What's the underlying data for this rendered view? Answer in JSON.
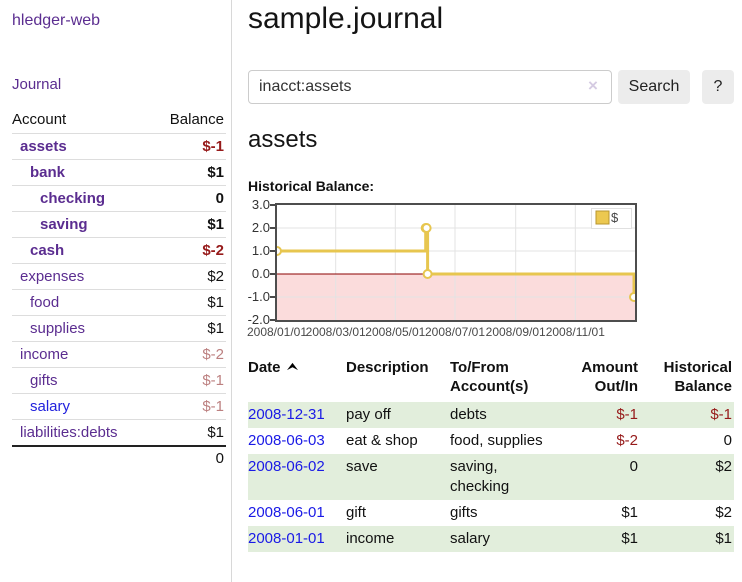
{
  "app": {
    "brand": "hledger-web",
    "nav": {
      "journal": "Journal"
    }
  },
  "colors": {
    "link_purple": "#5b2d90",
    "link_blue": "#2222dd",
    "date_link_blue": "#1a1ae6",
    "negative_red": "#961a1a",
    "muted_rose": "#bc8080",
    "row_stripe_green": "#e2eedc",
    "chart_line_gold": "#e7c64f",
    "chart_negative_fill": "#fbdcdc",
    "chart_zero_line": "#8b0000"
  },
  "sidebar": {
    "columns": {
      "account": "Account",
      "balance": "Balance"
    },
    "accounts": [
      {
        "name": "assets",
        "balance": "$-1",
        "level": 1,
        "strong": true,
        "link_style": "visited",
        "balance_style": "negative"
      },
      {
        "name": "bank",
        "balance": "$1",
        "level": 2,
        "strong": true,
        "link_style": "visited",
        "balance_style": "normal"
      },
      {
        "name": "checking",
        "balance": "0",
        "level": 3,
        "strong": true,
        "link_style": "visited",
        "balance_style": "normal"
      },
      {
        "name": "saving",
        "balance": "$1",
        "level": 3,
        "strong": true,
        "link_style": "visited",
        "balance_style": "normal"
      },
      {
        "name": "cash",
        "balance": "$-2",
        "level": 2,
        "strong": true,
        "link_style": "visited",
        "balance_style": "negative"
      },
      {
        "name": "expenses",
        "balance": "$2",
        "level": 1,
        "strong": false,
        "link_style": "visited",
        "balance_style": "normal"
      },
      {
        "name": "food",
        "balance": "$1",
        "level": 2,
        "strong": false,
        "link_style": "visited",
        "balance_style": "normal"
      },
      {
        "name": "supplies",
        "balance": "$1",
        "level": 2,
        "strong": false,
        "link_style": "visited",
        "balance_style": "normal"
      },
      {
        "name": "income",
        "balance": "$-2",
        "level": 1,
        "strong": false,
        "link_style": "visited",
        "balance_style": "muted"
      },
      {
        "name": "gifts",
        "balance": "$-1",
        "level": 2,
        "strong": false,
        "link_style": "visited",
        "balance_style": "muted"
      },
      {
        "name": "salary",
        "balance": "$-1",
        "level": 2,
        "strong": false,
        "link_style": "unvisited",
        "balance_style": "muted"
      },
      {
        "name": "liabilities:debts",
        "balance": "$1",
        "level": 1,
        "strong": false,
        "link_style": "visited",
        "balance_style": "normal"
      }
    ],
    "total": "0"
  },
  "main": {
    "title": "sample.journal",
    "search": {
      "value": "inacct:assets",
      "clear_label": "×",
      "submit_label": "Search",
      "help_label": "?"
    },
    "account_heading": "assets",
    "chart_title": "Historical Balance:"
  },
  "chart_data": {
    "type": "line",
    "step": true,
    "title": "Historical Balance",
    "x_range": [
      "2008-01-01",
      "2008-12-31"
    ],
    "ylim": [
      -2.0,
      3.0
    ],
    "yticks": [
      3.0,
      2.0,
      1.0,
      0.0,
      -1.0,
      -2.0
    ],
    "ytick_labels": [
      "3.0",
      "2.0",
      "1.0",
      "0.0",
      "-1.0",
      "-2.0"
    ],
    "xticks": [
      {
        "date": "2008-01-01",
        "label": "2008/01/01"
      },
      {
        "date": "2008-03-01",
        "label": "2008/03/01"
      },
      {
        "date": "2008-05-01",
        "label": "2008/05/01"
      },
      {
        "date": "2008-07-01",
        "label": "2008/07/01"
      },
      {
        "date": "2008-09-01",
        "label": "2008/09/01"
      },
      {
        "date": "2008-11-01",
        "label": "2008/11/01"
      }
    ],
    "grid": true,
    "legend": [
      {
        "label": "$"
      }
    ],
    "legend_position": "top-right",
    "series": [
      {
        "name": "$",
        "points": [
          {
            "date": "2008-01-01",
            "value": 1
          },
          {
            "date": "2008-06-01",
            "value": 2
          },
          {
            "date": "2008-06-02",
            "value": 2
          },
          {
            "date": "2008-06-03",
            "value": 0
          },
          {
            "date": "2008-12-31",
            "value": -1
          }
        ]
      }
    ]
  },
  "register": {
    "headers": {
      "date": "Date",
      "description": "Description",
      "accounts": "To/From Account(s)",
      "amount": "Amount Out/In",
      "balance": "Historical Balance"
    },
    "rows": [
      {
        "date": "2008-12-31",
        "description": "pay off",
        "accounts": [
          "debts"
        ],
        "amount": "$-1",
        "amount_style": "negative",
        "balance": "$-1",
        "balance_style": "negative"
      },
      {
        "date": "2008-06-03",
        "description": "eat & shop",
        "accounts": [
          "food",
          "supplies"
        ],
        "amount": "$-2",
        "amount_style": "negative",
        "balance": "0",
        "balance_style": "normal"
      },
      {
        "date": "2008-06-02",
        "description": "save",
        "accounts": [
          "saving",
          "checking"
        ],
        "amount": "0",
        "amount_style": "normal",
        "balance": "$2",
        "balance_style": "normal"
      },
      {
        "date": "2008-06-01",
        "description": "gift",
        "accounts": [
          "gifts"
        ],
        "amount": "$1",
        "amount_style": "normal",
        "balance": "$2",
        "balance_style": "normal"
      },
      {
        "date": "2008-01-01",
        "description": "income",
        "accounts": [
          "salary"
        ],
        "amount": "$1",
        "amount_style": "normal",
        "balance": "$1",
        "balance_style": "normal"
      }
    ]
  }
}
